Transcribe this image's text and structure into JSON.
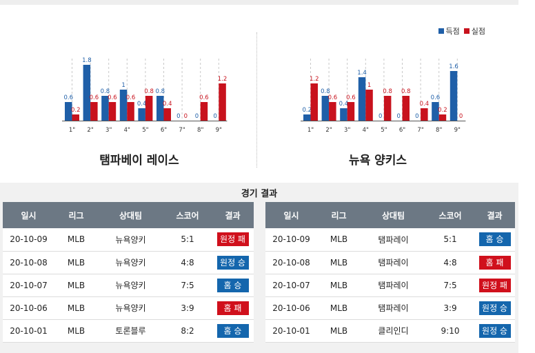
{
  "colors": {
    "score": "#1f5fa8",
    "concede": "#c8121d",
    "win": "#1466ad",
    "loss": "#d0101c"
  },
  "legend": {
    "score": "득점",
    "concede": "실점"
  },
  "teams": [
    {
      "name": "탬파베이 레이스"
    },
    {
      "name": "뉴욕 양키스"
    }
  ],
  "chart_data": [
    {
      "type": "bar",
      "title": "탬파베이 레이스",
      "categories": [
        "1\"",
        "2\"",
        "3\"",
        "4\"",
        "5\"",
        "6\"",
        "7\"",
        "8\"",
        "9\""
      ],
      "series": [
        {
          "name": "득점",
          "values": [
            0.6,
            1.8,
            0.8,
            1,
            0.4,
            0.8,
            0,
            0,
            0
          ]
        },
        {
          "name": "실점",
          "values": [
            0.2,
            0.6,
            0.6,
            0.6,
            0.8,
            0.4,
            0,
            0.6,
            1.2
          ]
        }
      ]
    },
    {
      "type": "bar",
      "title": "뉴욕 양키스",
      "categories": [
        "1\"",
        "2\"",
        "3\"",
        "4\"",
        "5\"",
        "6\"",
        "7\"",
        "8\"",
        "9\""
      ],
      "series": [
        {
          "name": "득점",
          "values": [
            0.2,
            0.8,
            0.4,
            1.4,
            0,
            0,
            0,
            0.6,
            1.6
          ]
        },
        {
          "name": "실점",
          "values": [
            1.2,
            0.6,
            0.6,
            1,
            0.8,
            0.8,
            0.4,
            0.2,
            0
          ]
        }
      ]
    }
  ],
  "results_title": "경기 결과",
  "headers": [
    "일시",
    "리그",
    "상대팀",
    "스코어",
    "결과"
  ],
  "left_rows": [
    {
      "date": "20-10-09",
      "league": "MLB",
      "opponent": "뉴욕양키",
      "score": "5:1",
      "result": "원정 패",
      "outcome": "loss"
    },
    {
      "date": "20-10-08",
      "league": "MLB",
      "opponent": "뉴욕양키",
      "score": "4:8",
      "result": "원정 승",
      "outcome": "win"
    },
    {
      "date": "20-10-07",
      "league": "MLB",
      "opponent": "뉴욕양키",
      "score": "7:5",
      "result": "홈 승",
      "outcome": "win"
    },
    {
      "date": "20-10-06",
      "league": "MLB",
      "opponent": "뉴욕양키",
      "score": "3:9",
      "result": "홈 패",
      "outcome": "loss"
    },
    {
      "date": "20-10-01",
      "league": "MLB",
      "opponent": "토론블루",
      "score": "8:2",
      "result": "홈 승",
      "outcome": "win"
    }
  ],
  "right_rows": [
    {
      "date": "20-10-09",
      "league": "MLB",
      "opponent": "탬파레이",
      "score": "5:1",
      "result": "홈 승",
      "outcome": "win"
    },
    {
      "date": "20-10-08",
      "league": "MLB",
      "opponent": "탬파레이",
      "score": "4:8",
      "result": "홈 패",
      "outcome": "loss"
    },
    {
      "date": "20-10-07",
      "league": "MLB",
      "opponent": "탬파레이",
      "score": "7:5",
      "result": "원정 패",
      "outcome": "loss"
    },
    {
      "date": "20-10-06",
      "league": "MLB",
      "opponent": "탬파레이",
      "score": "3:9",
      "result": "원정 승",
      "outcome": "win"
    },
    {
      "date": "20-10-01",
      "league": "MLB",
      "opponent": "클리인디",
      "score": "9:10",
      "result": "원정 승",
      "outcome": "win"
    }
  ]
}
